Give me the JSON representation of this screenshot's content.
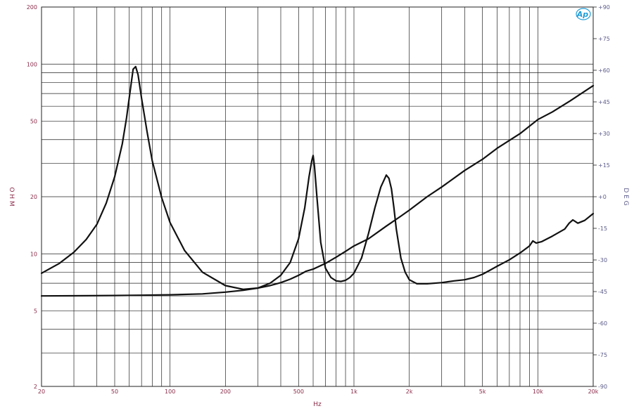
{
  "colors": {
    "left_tick": "#8a2a48",
    "right_tick": "#5a5a8a",
    "logo": "#1e9bd7",
    "curve": "#111111",
    "grid": "#222222"
  },
  "logo_icon": "ap-logo-icon",
  "logo_text": "Ap",
  "chart_data": {
    "type": "line",
    "xlabel": "Hz",
    "ylabel_left": "O H M",
    "ylabel_right": "D E G",
    "x_scale": "log",
    "y_scale_left": "log",
    "xlim": [
      20,
      20000
    ],
    "ylim_left": [
      2,
      200
    ],
    "ylim_right": [
      -90,
      90
    ],
    "grid": true,
    "x_tick_labels": [
      {
        "v": 20,
        "t": "20"
      },
      {
        "v": 50,
        "t": "50"
      },
      {
        "v": 100,
        "t": "100"
      },
      {
        "v": 200,
        "t": "200"
      },
      {
        "v": 500,
        "t": "500"
      },
      {
        "v": 1000,
        "t": "1k"
      },
      {
        "v": 2000,
        "t": "2k"
      },
      {
        "v": 5000,
        "t": "5k"
      },
      {
        "v": 10000,
        "t": "10k"
      },
      {
        "v": 20000,
        "t": "20k"
      }
    ],
    "y_left_tick_labels": [
      {
        "v": 2,
        "t": "2"
      },
      {
        "v": 5,
        "t": "5"
      },
      {
        "v": 10,
        "t": "10"
      },
      {
        "v": 20,
        "t": "20"
      },
      {
        "v": 50,
        "t": "50"
      },
      {
        "v": 100,
        "t": "100"
      },
      {
        "v": 200,
        "t": "200"
      }
    ],
    "y_right_tick_labels": [
      {
        "v": 90,
        "t": "+90"
      },
      {
        "v": 75,
        "t": "+75"
      },
      {
        "v": 60,
        "t": "+60"
      },
      {
        "v": 45,
        "t": "+45"
      },
      {
        "v": 30,
        "t": "+30"
      },
      {
        "v": 15,
        "t": "+15"
      },
      {
        "v": 0,
        "t": "+0"
      },
      {
        "v": -15,
        "t": "-15"
      },
      {
        "v": -30,
        "t": "-30"
      },
      {
        "v": -45,
        "t": "-45"
      },
      {
        "v": -60,
        "t": "-60"
      },
      {
        "v": -75,
        "t": "-75"
      },
      {
        "v": -90,
        "t": "-90"
      }
    ],
    "series": [
      {
        "axis": "left",
        "x": [
          20,
          25,
          30,
          35,
          40,
          45,
          50,
          55,
          58,
          61,
          63,
          65,
          67,
          70,
          75,
          80,
          90,
          100,
          120,
          150,
          200,
          250,
          300,
          350,
          400,
          450,
          500,
          540,
          570,
          590,
          600,
          610,
          630,
          660,
          700,
          750,
          800,
          850,
          900,
          950,
          1000,
          1100,
          1200,
          1300,
          1400,
          1500,
          1550,
          1600,
          1650,
          1700,
          1800,
          1900,
          2000,
          2200,
          2500,
          3000,
          3500,
          4000,
          4500,
          5000,
          5500,
          6000,
          7000,
          8000,
          9000,
          9400,
          9800,
          10500,
          12000,
          14000,
          14800,
          15500,
          16500,
          18000,
          20000
        ],
        "y": [
          7.9,
          8.9,
          10.2,
          11.9,
          14.3,
          18.5,
          25.5,
          38,
          52,
          75,
          94,
          97,
          88,
          66,
          44,
          31,
          19.8,
          14.6,
          10.4,
          8.0,
          6.8,
          6.5,
          6.6,
          7.0,
          7.7,
          9.0,
          12.0,
          17.5,
          25.5,
          31,
          33,
          29,
          19.5,
          11.5,
          8.4,
          7.5,
          7.2,
          7.15,
          7.25,
          7.5,
          7.9,
          9.5,
          12.8,
          17.5,
          22.5,
          26,
          25,
          22,
          17.5,
          13.5,
          9.5,
          8.0,
          7.3,
          6.95,
          6.95,
          7.05,
          7.2,
          7.3,
          7.5,
          7.8,
          8.2,
          8.6,
          9.3,
          10.1,
          11.0,
          11.7,
          11.4,
          11.6,
          12.4,
          13.5,
          14.5,
          15.1,
          14.5,
          15.0,
          16.3
        ]
      },
      {
        "axis": "left",
        "x": [
          20,
          30,
          50,
          70,
          100,
          150,
          200,
          250,
          300,
          350,
          400,
          450,
          500,
          550,
          600,
          700,
          800,
          900,
          1000,
          1200,
          1500,
          1800,
          2000,
          2500,
          3000,
          4000,
          5000,
          6000,
          8000,
          10000,
          12000,
          15000,
          20000
        ],
        "y": [
          6.0,
          6.01,
          6.03,
          6.05,
          6.08,
          6.15,
          6.28,
          6.42,
          6.6,
          6.8,
          7.05,
          7.35,
          7.7,
          8.1,
          8.3,
          8.9,
          9.6,
          10.3,
          11.0,
          12.0,
          14.0,
          15.8,
          17.0,
          20.0,
          22.5,
          27.5,
          31.5,
          36.0,
          43.0,
          51.0,
          56.0,
          64.0,
          77.0
        ]
      }
    ]
  }
}
